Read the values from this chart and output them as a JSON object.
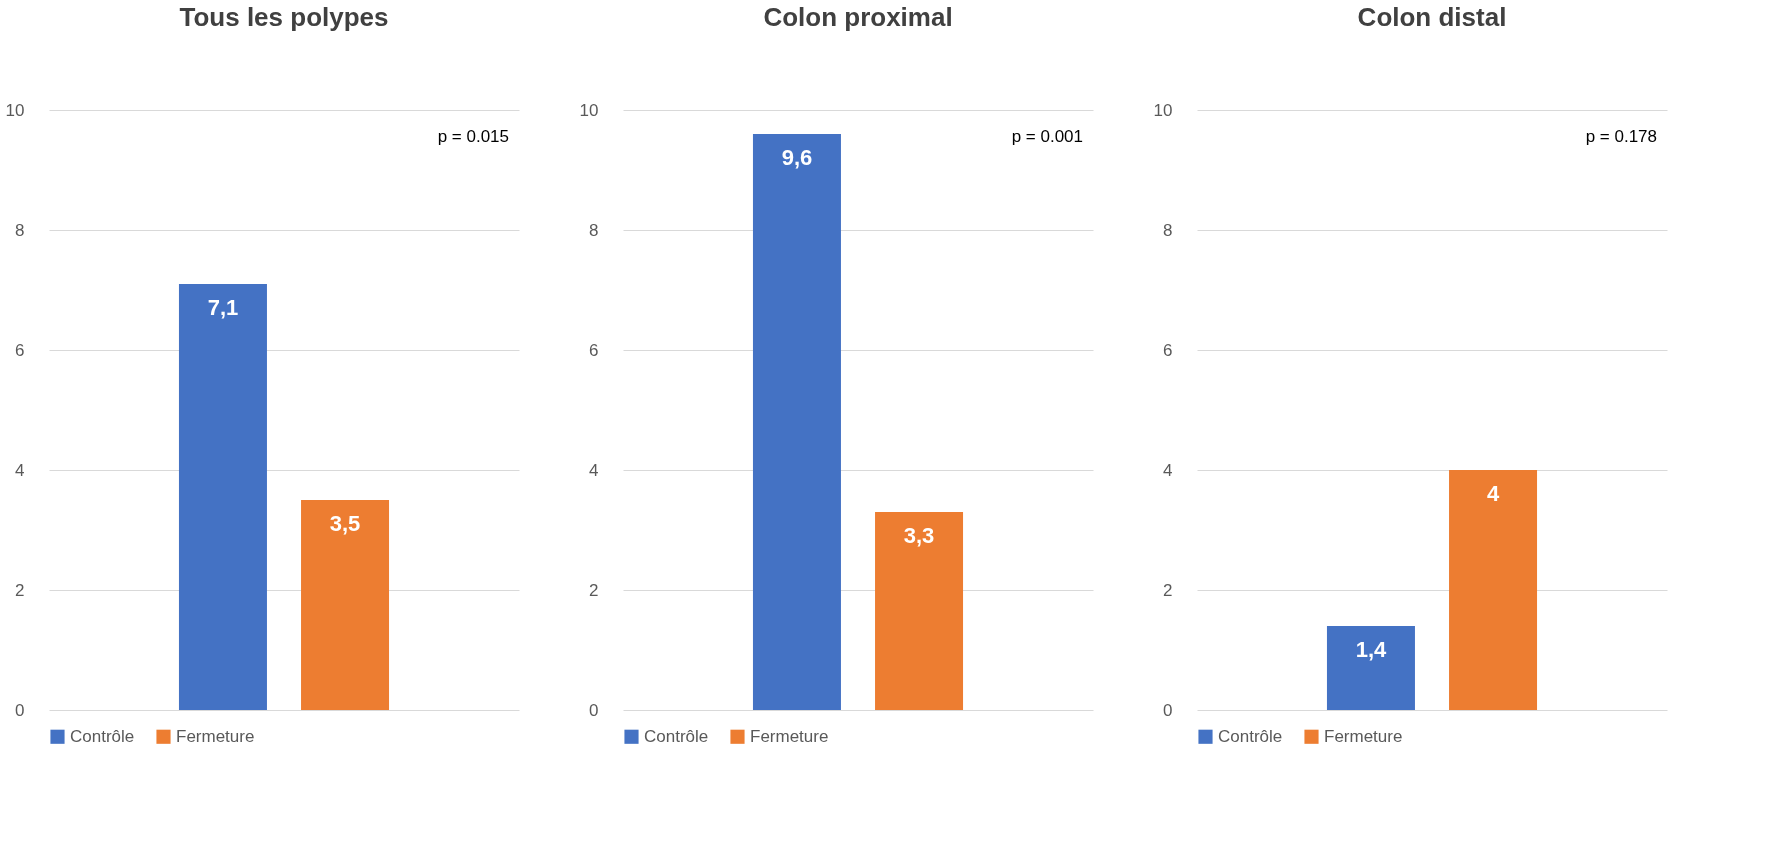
{
  "chart_data": [
    {
      "type": "bar",
      "title": "Tous les polypes",
      "categories": [
        null
      ],
      "series": [
        {
          "name": "Contrôle",
          "color": "#4472c4",
          "values": [
            7.1
          ],
          "value_labels": [
            "7,1"
          ]
        },
        {
          "name": "Fermeture",
          "color": "#ed7d31",
          "values": [
            3.5
          ],
          "value_labels": [
            "3,5"
          ]
        }
      ],
      "ylim": [
        0,
        10
      ],
      "yticks": [
        0,
        2,
        4,
        6,
        8,
        10
      ],
      "grid": "y",
      "legend": "bottom",
      "annotations": [
        "p = 0.015"
      ]
    },
    {
      "type": "bar",
      "title": "Colon proximal",
      "categories": [
        null
      ],
      "series": [
        {
          "name": "Contrôle",
          "color": "#4472c4",
          "values": [
            9.6
          ],
          "value_labels": [
            "9,6"
          ]
        },
        {
          "name": "Fermeture",
          "color": "#ed7d31",
          "values": [
            3.3
          ],
          "value_labels": [
            "3,3"
          ]
        }
      ],
      "ylim": [
        0,
        10
      ],
      "yticks": [
        0,
        2,
        4,
        6,
        8,
        10
      ],
      "grid": "y",
      "legend": "bottom",
      "annotations": [
        "p = 0.001"
      ]
    },
    {
      "type": "bar",
      "title": "Colon distal",
      "categories": [
        null
      ],
      "series": [
        {
          "name": "Contrôle",
          "color": "#4472c4",
          "values": [
            1.4
          ],
          "value_labels": [
            "1,4"
          ]
        },
        {
          "name": "Fermeture",
          "color": "#ed7d31",
          "values": [
            4
          ],
          "value_labels": [
            "4"
          ]
        }
      ],
      "ylim": [
        0,
        10
      ],
      "yticks": [
        0,
        2,
        4,
        6,
        8,
        10
      ],
      "grid": "y",
      "legend": "bottom",
      "annotations": [
        "p = 0.178"
      ]
    }
  ]
}
